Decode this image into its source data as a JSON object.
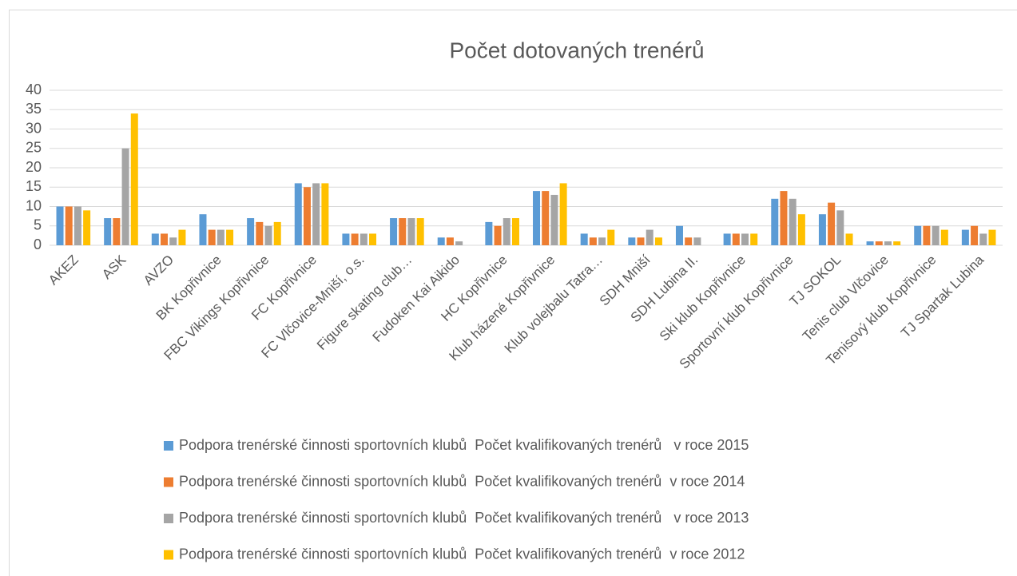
{
  "chart_data": {
    "type": "bar",
    "title": "Počet dotovaných trenérů",
    "categories": [
      "AKEZ",
      "ASK",
      "AVZO",
      "BK Kopřivnice",
      "FBC Vikings Kopřivnice",
      "FC Kopřivnice",
      "FC Vlčovice-Mniší, o.s.",
      "Figure skating club…",
      "Fudoken Kai Aikido",
      "HC Kopřivnice",
      "Klub házené Kopřivnice",
      "Klub volejbalu Tatra…",
      "SDH Mniší",
      "SDH Lubina II.",
      "Ski klub Kopřivnice",
      "Sportovní klub Kopřivnice",
      "TJ SOKOL",
      "Tenis club Vlčovice",
      "Tenisový klub Kopřivnice",
      "TJ Spartak Lubina"
    ],
    "series": [
      {
        "name": "Podpora trenérské činnosti sportovních klubů  Počet kvalifikovaných trenérů   v roce 2015",
        "color": "#5b9bd5",
        "values": [
          10,
          7,
          3,
          8,
          7,
          16,
          3,
          7,
          2,
          6,
          14,
          3,
          2,
          5,
          3,
          12,
          8,
          1,
          5,
          4
        ]
      },
      {
        "name": "Podpora trenérské činnosti sportovních klubů  Počet kvalifikovaných trenérů  v roce 2014",
        "color": "#ed7d31",
        "values": [
          10,
          7,
          3,
          4,
          6,
          15,
          3,
          7,
          2,
          5,
          14,
          2,
          2,
          2,
          3,
          14,
          11,
          1,
          5,
          5
        ]
      },
      {
        "name": "Podpora trenérské činnosti sportovních klubů  Počet kvalifikovaných trenérů   v roce 2013",
        "color": "#a5a5a5",
        "values": [
          10,
          25,
          2,
          4,
          5,
          16,
          3,
          7,
          1,
          7,
          13,
          2,
          4,
          2,
          3,
          12,
          9,
          1,
          5,
          3
        ]
      },
      {
        "name": "Podpora trenérské činnosti sportovních klubů  Počet kvalifikovaných trenérů  v roce 2012",
        "color": "#ffc000",
        "values": [
          9,
          34,
          4,
          4,
          6,
          16,
          3,
          7,
          null,
          7,
          16,
          4,
          2,
          null,
          3,
          8,
          3,
          1,
          4,
          4
        ]
      }
    ],
    "ylim": [
      0,
      40
    ],
    "yticks": [
      0,
      5,
      10,
      15,
      20,
      25,
      30,
      35,
      40
    ],
    "grid": true
  }
}
